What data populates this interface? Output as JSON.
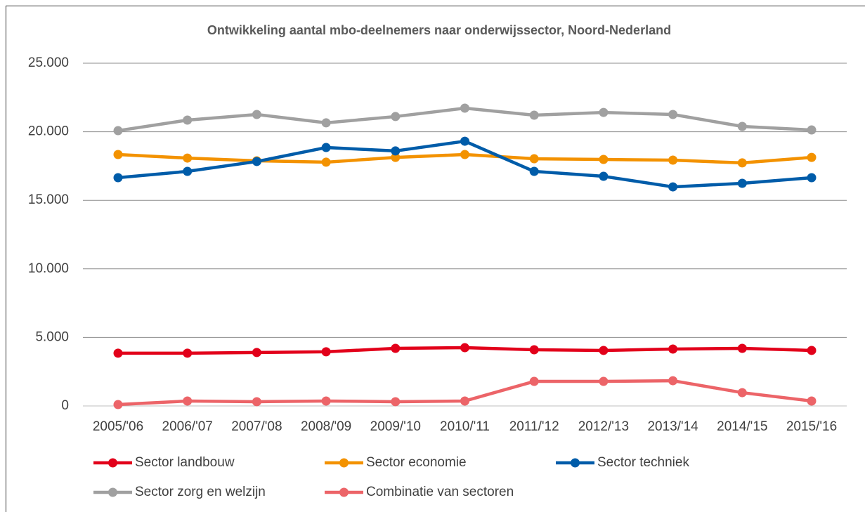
{
  "chart_data": {
    "type": "line",
    "title": "Ontwikkeling aantal mbo-deelnemers naar onderwijssector, Noord-Nederland",
    "categories": [
      "2005/'06",
      "2006/'07",
      "2007/'08",
      "2008/'09",
      "2009/'10",
      "2010/'11",
      "2011/'12",
      "2012/'13",
      "2013/'14",
      "2014/'15",
      "2015/'16"
    ],
    "series": [
      {
        "name": "Sector landbouw",
        "color": "#e2001a",
        "values": [
          3850,
          3850,
          3900,
          3950,
          4200,
          4250,
          4100,
          4050,
          4150,
          4200,
          4050
        ]
      },
      {
        "name": "Sector economie",
        "color": "#f39200",
        "values": [
          18340,
          18080,
          17880,
          17780,
          18130,
          18340,
          18030,
          17980,
          17930,
          17730,
          18130
        ]
      },
      {
        "name": "Sector techniek",
        "color": "#005ca9",
        "values": [
          16650,
          17110,
          17830,
          18850,
          18600,
          19310,
          17110,
          16750,
          15980,
          16240,
          16650
        ]
      },
      {
        "name": "Sector zorg en welzijn",
        "color": "#a0a0a0",
        "values": [
          20080,
          20850,
          21260,
          20650,
          21110,
          21720,
          21210,
          21410,
          21260,
          20390,
          20130
        ]
      },
      {
        "name": "Combinatie van sectoren",
        "color": "#ec6468",
        "values": [
          100,
          360,
          310,
          360,
          310,
          360,
          1790,
          1790,
          1840,
          970,
          360
        ]
      }
    ],
    "ylim": [
      0,
      25000
    ],
    "yticks": [
      0,
      {
        "value": 5000,
        "label": "5.000"
      },
      {
        "value": 10000,
        "label": "10.000"
      },
      {
        "value": 15000,
        "label": "15.000"
      },
      {
        "value": 20000,
        "label": "20.000"
      },
      {
        "value": 25000,
        "label": "25.000"
      }
    ],
    "grid": true,
    "legend": "bottom"
  }
}
